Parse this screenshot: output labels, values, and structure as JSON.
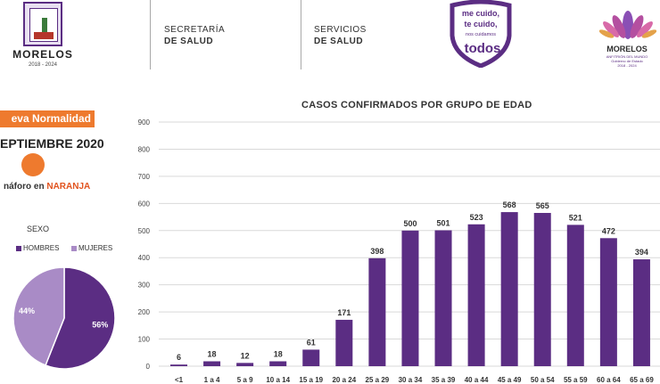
{
  "header": {
    "state_name": "MORELOS",
    "state_years": "2018 - 2024",
    "block1_line1": "SECRETARÍA",
    "block1_line2": "DE SALUD",
    "block2_line1": "SERVICIOS",
    "block2_line2": "DE SALUD",
    "campaign_line1": "me cuido,",
    "campaign_line2": "te cuido,",
    "campaign_line3": "nos cuidamos",
    "campaign_line4": "todos",
    "gov_name": "MORELOS",
    "gov_sub1": "ANFITRIÓN DEL MUNDO",
    "gov_sub2": "Gobierno de Estado",
    "gov_sub3": "2018 - 2024"
  },
  "status": {
    "badge": "eva Normalidad",
    "date": "EPTIEMBRE 2020",
    "semaforo_prefix": "náforo en ",
    "semaforo_color": "NARANJA"
  },
  "sexo": {
    "title": "SEXO",
    "legend_hombres": "HOMBRES",
    "legend_mujeres": "MUJERES",
    "pct_hombres": "56%",
    "pct_mujeres": "44%",
    "hombres_value": 56,
    "mujeres_value": 44,
    "color_hombres": "#5b2d83",
    "color_mujeres": "#a98bc6"
  },
  "chart_data": {
    "type": "bar",
    "title": "CASOS CONFIRMADOS POR GRUPO DE EDAD",
    "categories": [
      "<1",
      "1 a 4",
      "5 a 9",
      "10 a 14",
      "15 a 19",
      "20 a 24",
      "25 a 29",
      "30 a 34",
      "35 a 39",
      "40 a 44",
      "45 a 49",
      "50 a 54",
      "55 a 59",
      "60 a 64",
      "65 a 69"
    ],
    "values": [
      6,
      18,
      12,
      18,
      61,
      171,
      398,
      500,
      501,
      523,
      568,
      565,
      521,
      472,
      394
    ],
    "yticks": [
      "0",
      "100",
      "200",
      "300",
      "400",
      "500",
      "600",
      "700",
      "800",
      "900"
    ],
    "ylim": [
      0,
      900
    ],
    "grid": true,
    "bar_color": "#5b2d83"
  }
}
